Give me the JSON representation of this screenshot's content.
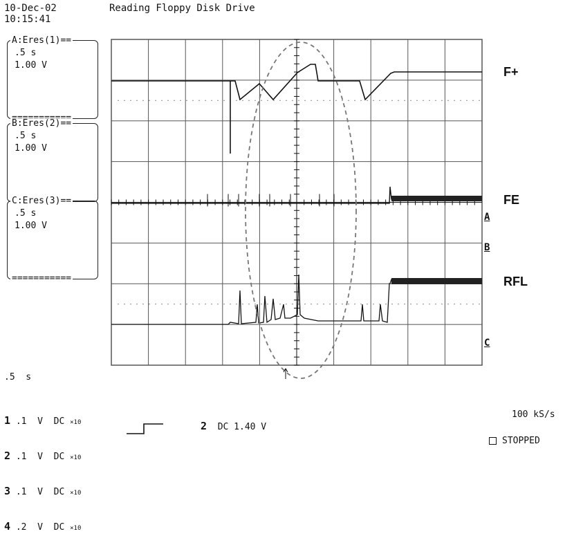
{
  "header": {
    "date": "10-Dec-02",
    "time": "10:15:41",
    "title": "Reading Floppy Disk Drive"
  },
  "traces": [
    {
      "name": "A:Eres(1)==",
      "time": ".5 s",
      "volt": "1.00 V",
      "footer": "==========="
    },
    {
      "name": "B:Eres(2)==",
      "time": ".5 s",
      "volt": "1.00 V",
      "footer": "==========="
    },
    {
      "name": "C:Eres(3)==",
      "time": ".5 s",
      "volt": "1.00 V",
      "footer": "==========="
    }
  ],
  "signal_labels": {
    "f_plus": "F+",
    "fe": "FE",
    "rfl": "RFL"
  },
  "markers": {
    "a": "A",
    "b": "B",
    "c": "C"
  },
  "timebase": ".5  s",
  "channels": [
    {
      "num": "1",
      "scale": ".1",
      "unit": "V",
      "coupling": "DC",
      "probe": "×10"
    },
    {
      "num": "2",
      "scale": ".1",
      "unit": "V",
      "coupling": "DC",
      "probe": "×10"
    },
    {
      "num": "3",
      "scale": ".1",
      "unit": "V",
      "coupling": "DC",
      "probe": "×10"
    },
    {
      "num": "4",
      "scale": ".2",
      "unit": "V",
      "coupling": "DC",
      "probe": "×10"
    }
  ],
  "trigger": {
    "channel": "2",
    "setting": "DC 1.40 V"
  },
  "sample_rate": "100 kS/s",
  "status": "STOPPED"
}
